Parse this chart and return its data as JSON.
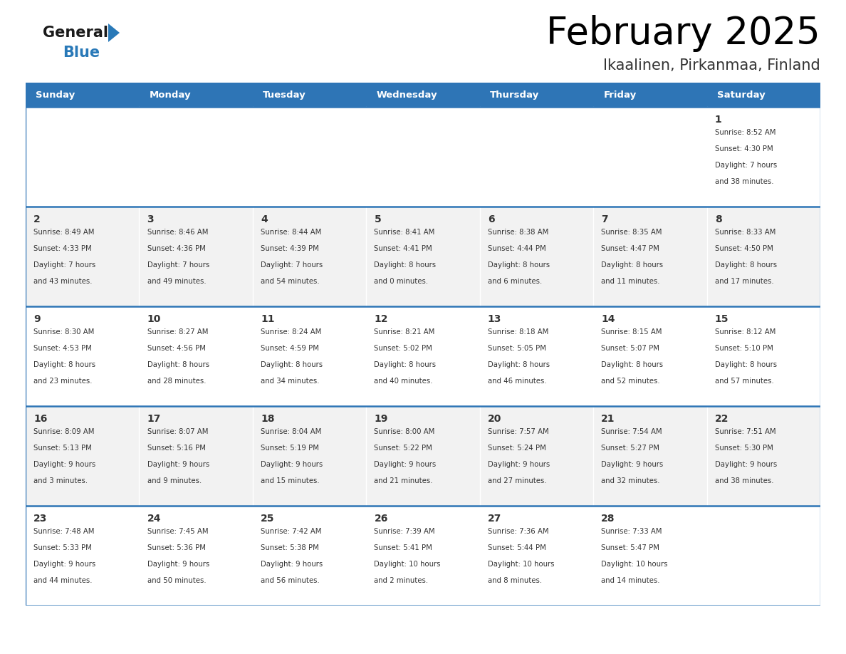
{
  "title": "February 2025",
  "subtitle": "Ikaalinen, Pirkanmaa, Finland",
  "days_of_week": [
    "Sunday",
    "Monday",
    "Tuesday",
    "Wednesday",
    "Thursday",
    "Friday",
    "Saturday"
  ],
  "header_bg": "#2E75B6",
  "header_text": "#FFFFFF",
  "cell_bg_odd": "#F2F2F2",
  "cell_bg_even": "#FFFFFF",
  "border_color": "#2E75B6",
  "day_num_color": "#333333",
  "info_text_color": "#333333",
  "title_color": "#000000",
  "subtitle_color": "#333333",
  "logo_general_color": "#1a1a1a",
  "logo_blue_color": "#2979B8",
  "calendar_data": [
    [
      {
        "day": null,
        "info": ""
      },
      {
        "day": null,
        "info": ""
      },
      {
        "day": null,
        "info": ""
      },
      {
        "day": null,
        "info": ""
      },
      {
        "day": null,
        "info": ""
      },
      {
        "day": null,
        "info": ""
      },
      {
        "day": 1,
        "info": "Sunrise: 8:52 AM\nSunset: 4:30 PM\nDaylight: 7 hours\nand 38 minutes."
      }
    ],
    [
      {
        "day": 2,
        "info": "Sunrise: 8:49 AM\nSunset: 4:33 PM\nDaylight: 7 hours\nand 43 minutes."
      },
      {
        "day": 3,
        "info": "Sunrise: 8:46 AM\nSunset: 4:36 PM\nDaylight: 7 hours\nand 49 minutes."
      },
      {
        "day": 4,
        "info": "Sunrise: 8:44 AM\nSunset: 4:39 PM\nDaylight: 7 hours\nand 54 minutes."
      },
      {
        "day": 5,
        "info": "Sunrise: 8:41 AM\nSunset: 4:41 PM\nDaylight: 8 hours\nand 0 minutes."
      },
      {
        "day": 6,
        "info": "Sunrise: 8:38 AM\nSunset: 4:44 PM\nDaylight: 8 hours\nand 6 minutes."
      },
      {
        "day": 7,
        "info": "Sunrise: 8:35 AM\nSunset: 4:47 PM\nDaylight: 8 hours\nand 11 minutes."
      },
      {
        "day": 8,
        "info": "Sunrise: 8:33 AM\nSunset: 4:50 PM\nDaylight: 8 hours\nand 17 minutes."
      }
    ],
    [
      {
        "day": 9,
        "info": "Sunrise: 8:30 AM\nSunset: 4:53 PM\nDaylight: 8 hours\nand 23 minutes."
      },
      {
        "day": 10,
        "info": "Sunrise: 8:27 AM\nSunset: 4:56 PM\nDaylight: 8 hours\nand 28 minutes."
      },
      {
        "day": 11,
        "info": "Sunrise: 8:24 AM\nSunset: 4:59 PM\nDaylight: 8 hours\nand 34 minutes."
      },
      {
        "day": 12,
        "info": "Sunrise: 8:21 AM\nSunset: 5:02 PM\nDaylight: 8 hours\nand 40 minutes."
      },
      {
        "day": 13,
        "info": "Sunrise: 8:18 AM\nSunset: 5:05 PM\nDaylight: 8 hours\nand 46 minutes."
      },
      {
        "day": 14,
        "info": "Sunrise: 8:15 AM\nSunset: 5:07 PM\nDaylight: 8 hours\nand 52 minutes."
      },
      {
        "day": 15,
        "info": "Sunrise: 8:12 AM\nSunset: 5:10 PM\nDaylight: 8 hours\nand 57 minutes."
      }
    ],
    [
      {
        "day": 16,
        "info": "Sunrise: 8:09 AM\nSunset: 5:13 PM\nDaylight: 9 hours\nand 3 minutes."
      },
      {
        "day": 17,
        "info": "Sunrise: 8:07 AM\nSunset: 5:16 PM\nDaylight: 9 hours\nand 9 minutes."
      },
      {
        "day": 18,
        "info": "Sunrise: 8:04 AM\nSunset: 5:19 PM\nDaylight: 9 hours\nand 15 minutes."
      },
      {
        "day": 19,
        "info": "Sunrise: 8:00 AM\nSunset: 5:22 PM\nDaylight: 9 hours\nand 21 minutes."
      },
      {
        "day": 20,
        "info": "Sunrise: 7:57 AM\nSunset: 5:24 PM\nDaylight: 9 hours\nand 27 minutes."
      },
      {
        "day": 21,
        "info": "Sunrise: 7:54 AM\nSunset: 5:27 PM\nDaylight: 9 hours\nand 32 minutes."
      },
      {
        "day": 22,
        "info": "Sunrise: 7:51 AM\nSunset: 5:30 PM\nDaylight: 9 hours\nand 38 minutes."
      }
    ],
    [
      {
        "day": 23,
        "info": "Sunrise: 7:48 AM\nSunset: 5:33 PM\nDaylight: 9 hours\nand 44 minutes."
      },
      {
        "day": 24,
        "info": "Sunrise: 7:45 AM\nSunset: 5:36 PM\nDaylight: 9 hours\nand 50 minutes."
      },
      {
        "day": 25,
        "info": "Sunrise: 7:42 AM\nSunset: 5:38 PM\nDaylight: 9 hours\nand 56 minutes."
      },
      {
        "day": 26,
        "info": "Sunrise: 7:39 AM\nSunset: 5:41 PM\nDaylight: 10 hours\nand 2 minutes."
      },
      {
        "day": 27,
        "info": "Sunrise: 7:36 AM\nSunset: 5:44 PM\nDaylight: 10 hours\nand 8 minutes."
      },
      {
        "day": 28,
        "info": "Sunrise: 7:33 AM\nSunset: 5:47 PM\nDaylight: 10 hours\nand 14 minutes."
      },
      {
        "day": null,
        "info": ""
      }
    ]
  ],
  "fig_width": 11.88,
  "fig_height": 9.18,
  "dpi": 100
}
